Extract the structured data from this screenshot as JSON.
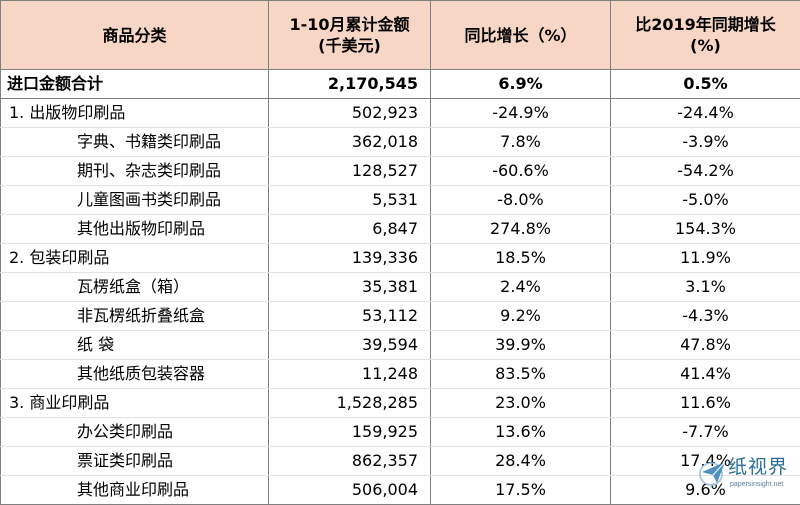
{
  "table": {
    "headers": {
      "category": "商品分类",
      "amount_line1": "1-10月累计金额",
      "amount_line2": "(千美元)",
      "yoy": "同比增长（%）",
      "vs2019_line1": "比2019年同期增长",
      "vs2019_line2": "(%)"
    },
    "rows": [
      {
        "type": "total",
        "name": "进口金额合计",
        "amount": "2,170,545",
        "yoy": "6.9%",
        "vs2019": "0.5%"
      },
      {
        "type": "category",
        "name": "1. 出版物印刷品",
        "amount": "502,923",
        "yoy": "-24.9%",
        "vs2019": "-24.4%"
      },
      {
        "type": "sub",
        "name": "字典、书籍类印刷品",
        "amount": "362,018",
        "yoy": "7.8%",
        "vs2019": "-3.9%"
      },
      {
        "type": "sub",
        "name": "期刊、杂志类印刷品",
        "amount": "128,527",
        "yoy": "-60.6%",
        "vs2019": "-54.2%"
      },
      {
        "type": "sub",
        "name": "儿童图画书类印刷品",
        "amount": "5,531",
        "yoy": "-8.0%",
        "vs2019": "-5.0%"
      },
      {
        "type": "sub",
        "name": "其他出版物印刷品",
        "amount": "6,847",
        "yoy": "274.8%",
        "vs2019": "154.3%"
      },
      {
        "type": "category",
        "name": "2. 包装印刷品",
        "amount": "139,336",
        "yoy": "18.5%",
        "vs2019": "11.9%"
      },
      {
        "type": "sub",
        "name": "瓦楞纸盒（箱）",
        "amount": "35,381",
        "yoy": "2.4%",
        "vs2019": "3.1%"
      },
      {
        "type": "sub",
        "name": "非瓦楞纸折叠纸盒",
        "amount": "53,112",
        "yoy": "9.2%",
        "vs2019": "-4.3%"
      },
      {
        "type": "sub",
        "name": "纸  袋",
        "amount": "39,594",
        "yoy": "39.9%",
        "vs2019": "47.8%"
      },
      {
        "type": "sub",
        "name": "其他纸质包装容器",
        "amount": "11,248",
        "yoy": "83.5%",
        "vs2019": "41.4%"
      },
      {
        "type": "category",
        "name": "3. 商业印刷品",
        "amount": "1,528,285",
        "yoy": "23.0%",
        "vs2019": "11.6%"
      },
      {
        "type": "sub",
        "name": "办公类印刷品",
        "amount": "159,925",
        "yoy": "13.6%",
        "vs2019": "-7.7%"
      },
      {
        "type": "sub",
        "name": "票证类印刷品",
        "amount": "862,357",
        "yoy": "28.4%",
        "vs2019": "17.4%"
      },
      {
        "type": "sub",
        "name": "其他商业印刷品",
        "amount": "506,004",
        "yoy": "17.5%",
        "vs2019": "9.6%"
      }
    ]
  },
  "watermark": {
    "text": "纸视界",
    "url": "papersinsight.net",
    "icon": "paper-plane-icon",
    "color": "#2a6f9a"
  }
}
